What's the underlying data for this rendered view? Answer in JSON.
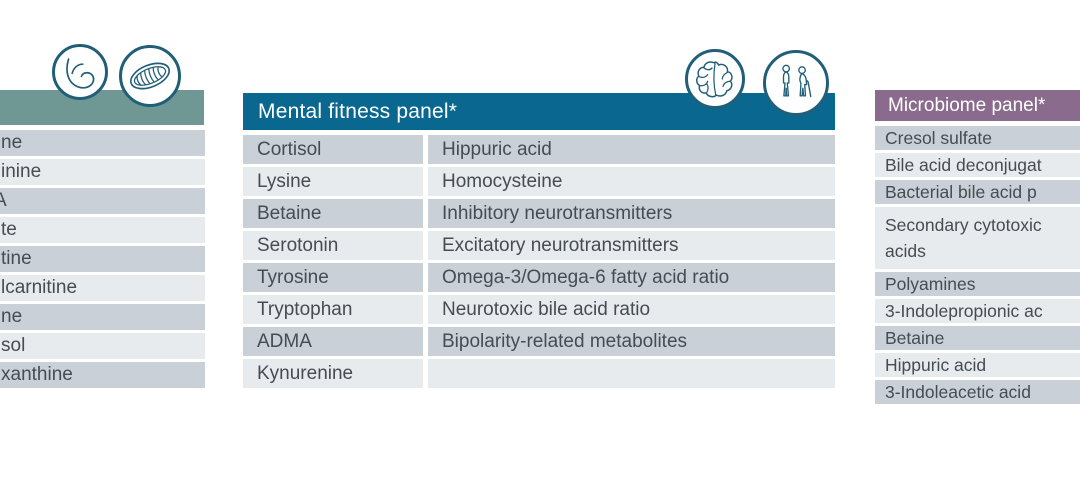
{
  "colors": {
    "header_left": "#6f9793",
    "header_center": "#0a6890",
    "header_right": "#8a6b8d",
    "row_dark": "#c9d0d7",
    "row_light": "#e7ebee",
    "text": "#454c52",
    "icon_stroke": "#215f78"
  },
  "left_panel": {
    "icons": [
      "muscle-arm-icon",
      "mitochondria-icon"
    ],
    "visible_row_fragments": [
      "ne",
      "inine",
      "A",
      "te",
      "tine",
      "lcarnitine",
      "ne",
      "sol",
      "xanthine"
    ]
  },
  "mental_fitness_panel": {
    "title": "Mental fitness panel*",
    "icons": [
      "brain-icon",
      "elderly-couple-icon"
    ],
    "rows": [
      {
        "c1": "Cortisol",
        "c2": "Hippuric acid"
      },
      {
        "c1": "Lysine",
        "c2": "Homocysteine"
      },
      {
        "c1": "Betaine",
        "c2": "Inhibitory neurotransmitters"
      },
      {
        "c1": "Serotonin",
        "c2": "Excitatory neurotransmitters"
      },
      {
        "c1": "Tyrosine",
        "c2": "Omega-3/Omega-6 fatty acid ratio"
      },
      {
        "c1": "Tryptophan",
        "c2": "Neurotoxic bile acid ratio"
      },
      {
        "c1": "ADMA",
        "c2": "Bipolarity-related metabolites"
      },
      {
        "c1": "Kynurenine",
        "c2": ""
      }
    ]
  },
  "microbiome_panel": {
    "title": "Microbiome panel*",
    "rows": [
      {
        "text": "Cresol sulfate"
      },
      {
        "text": "Bile acid deconjugat"
      },
      {
        "text": "Bacterial bile acid p"
      },
      {
        "text": "Secondary cytotoxic",
        "text2": "acids"
      },
      {
        "text": "Polyamines"
      },
      {
        "text": "3-Indolepropionic ac"
      },
      {
        "text": "Betaine"
      },
      {
        "text": "Hippuric acid"
      },
      {
        "text": "3-Indoleacetic acid"
      }
    ]
  }
}
